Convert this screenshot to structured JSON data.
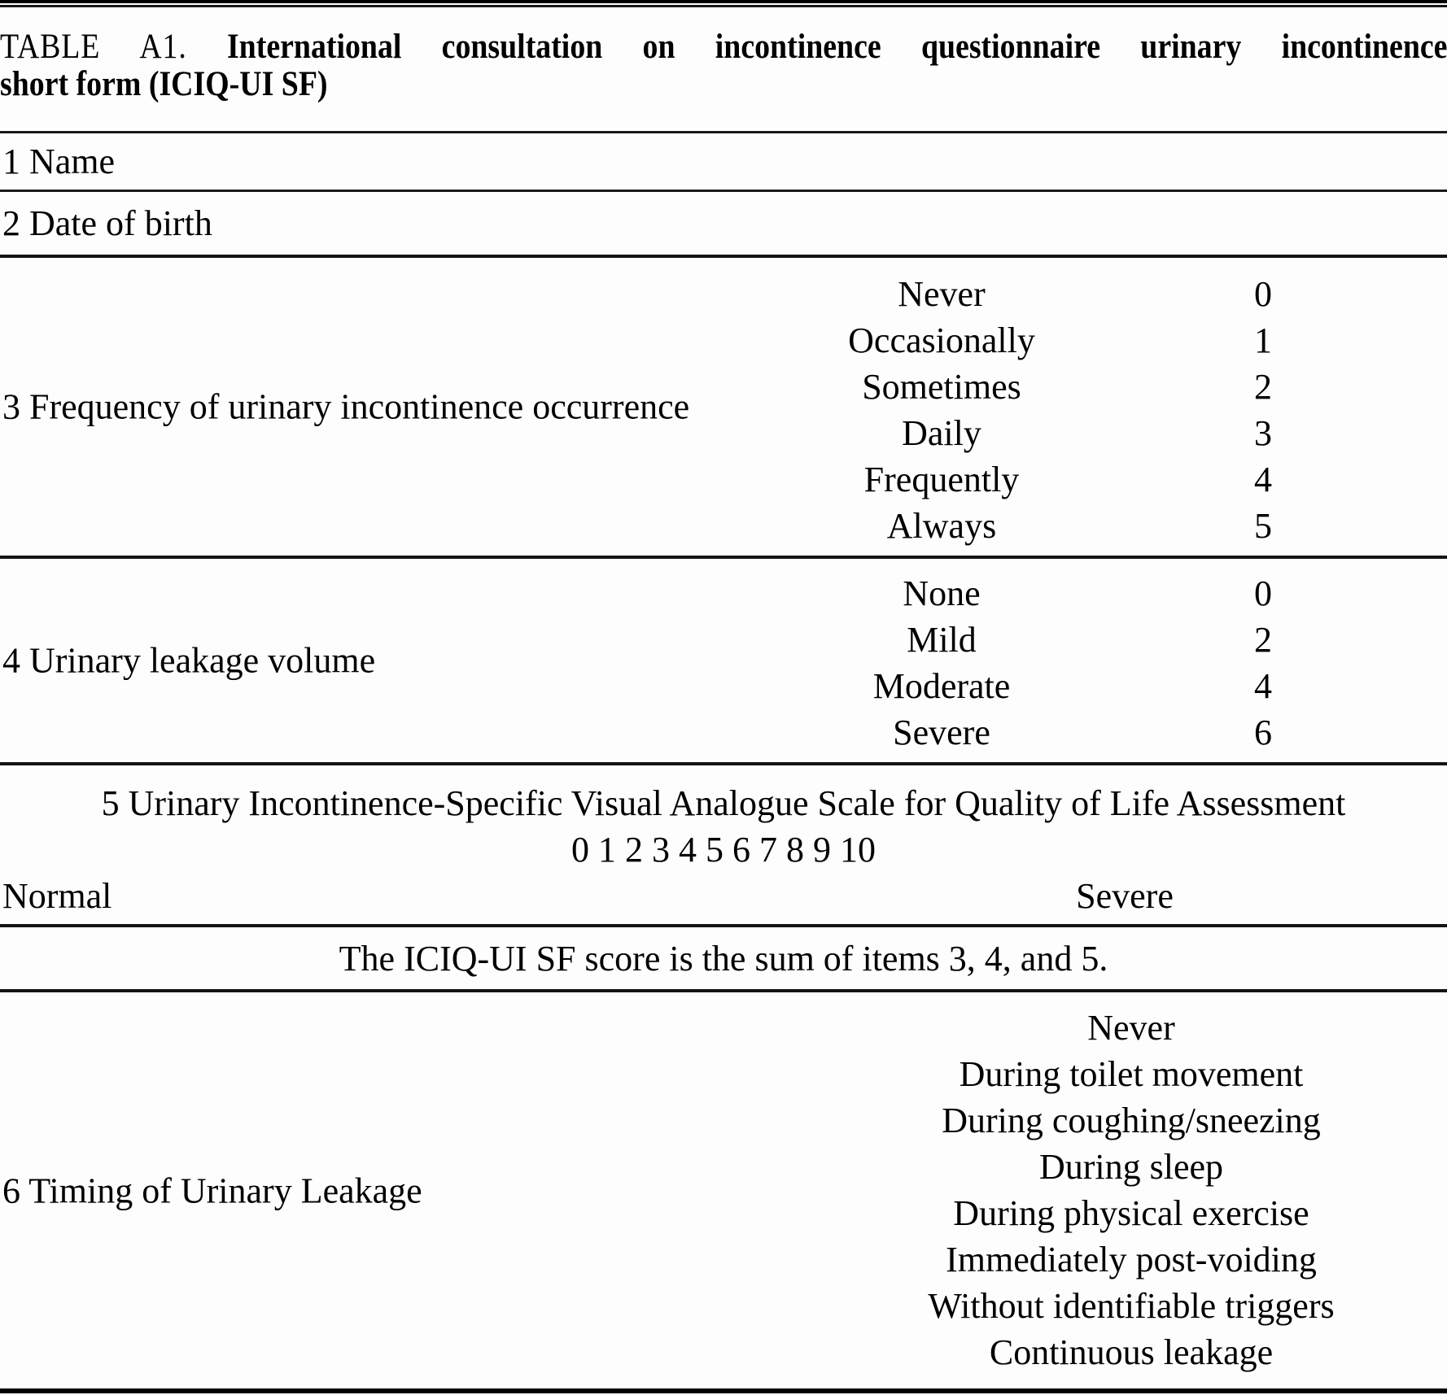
{
  "title": {
    "label": "TABLE A1.",
    "line1_bold": "International consultation on incontinence questionnaire urinary incontinence",
    "line2_bold": "short form (ICIQ-UI SF)"
  },
  "fields": {
    "name": "1 Name",
    "dob": "2 Date of birth"
  },
  "item3": {
    "label": "3 Frequency of urinary incontinence occurrence",
    "options": [
      {
        "label": "Never",
        "score": "0"
      },
      {
        "label": "Occasionally",
        "score": "1"
      },
      {
        "label": "Sometimes",
        "score": "2"
      },
      {
        "label": "Daily",
        "score": "3"
      },
      {
        "label": "Frequently",
        "score": "4"
      },
      {
        "label": "Always",
        "score": "5"
      }
    ]
  },
  "item4": {
    "label": "4 Urinary leakage volume",
    "options": [
      {
        "label": "None",
        "score": "0"
      },
      {
        "label": "Mild",
        "score": "2"
      },
      {
        "label": "Moderate",
        "score": "4"
      },
      {
        "label": "Severe",
        "score": "6"
      }
    ]
  },
  "item5": {
    "label": "5 Urinary Incontinence-Specific Visual Analogue Scale for Quality of Life Assessment",
    "scale": "0 1 2 3 4 5 6 7 8 9 10",
    "left_anchor": "Normal",
    "right_anchor": "Severe"
  },
  "score_note": "The ICIQ-UI SF score is the sum of items 3, 4, and 5.",
  "item6": {
    "label": "6 Timing of Urinary Leakage",
    "options": [
      {
        "label": "Never"
      },
      {
        "label": "During toilet movement"
      },
      {
        "label": "During coughing/sneezing"
      },
      {
        "label": "During sleep"
      },
      {
        "label": "During physical exercise"
      },
      {
        "label": "Immediately post-voiding"
      },
      {
        "label": "Without identifiable triggers"
      },
      {
        "label": "Continuous leakage"
      }
    ]
  }
}
